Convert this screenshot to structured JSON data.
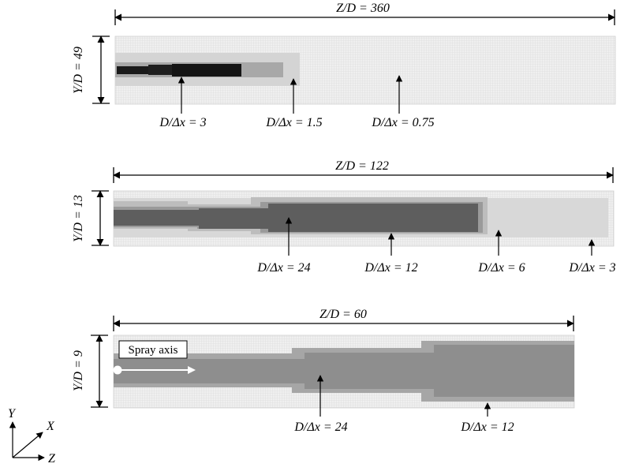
{
  "panels": [
    {
      "z_label": "Z/D = 360",
      "y_label": "Y/D = 49",
      "resolutions": [
        "D/Δx = 3",
        "D/Δx = 1.5",
        "D/Δx = 0.75"
      ]
    },
    {
      "z_label": "Z/D = 122",
      "y_label": "Y/D = 13",
      "resolutions": [
        "D/Δx = 24",
        "D/Δx = 12",
        "D/Δx = 6",
        "D/Δx = 3"
      ]
    },
    {
      "z_label": "Z/D = 60",
      "y_label": "Y/D = 9",
      "resolutions": [
        "D/Δx = 24",
        "D/Δx = 12"
      ],
      "spray_label": "Spray axis"
    }
  ],
  "axes": {
    "y": "Y",
    "x": "X",
    "z": "Z"
  },
  "colors": {
    "grid_075": "#ececec",
    "grid_1_5": "#d6d6d6",
    "grid_3": "#ababab",
    "grid_3_dark": "#1a1a1a",
    "grid_6": "#c9c9c9",
    "grid_12": "#9a9a9a",
    "grid_24": "#5c5c5c"
  }
}
